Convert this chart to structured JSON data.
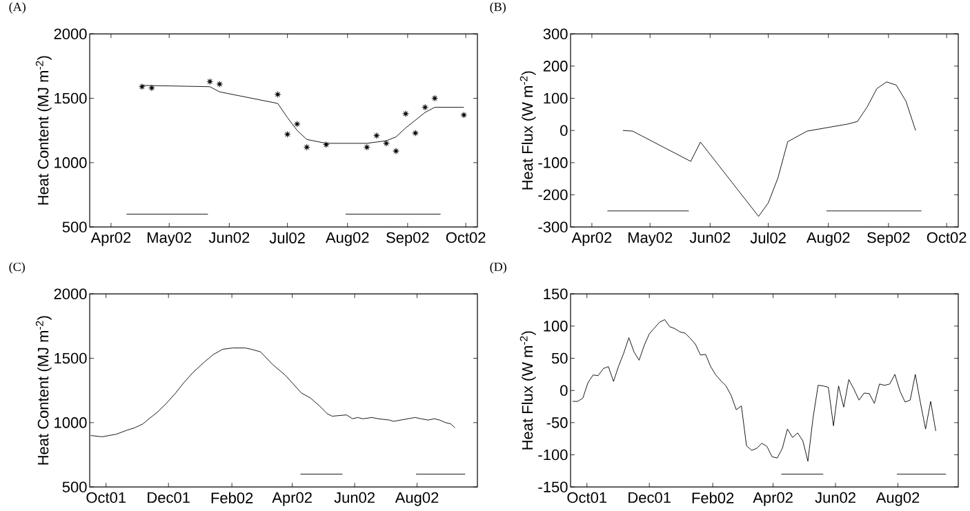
{
  "chart_data": [
    {
      "type": "line",
      "title": "(A)",
      "ylabel": "Heat Content (MJ m$^{-2}$)",
      "xlim": [
        "2002-03-21",
        "2002-10-07"
      ],
      "ylim": [
        500,
        2000
      ],
      "yticks": [
        500,
        1000,
        1500,
        2000
      ],
      "xticks": [
        {
          "value": "2002-04-01",
          "label": "Apr02"
        },
        {
          "value": "2002-05-01",
          "label": "May02"
        },
        {
          "value": "2002-06-01",
          "label": "Jun02"
        },
        {
          "value": "2002-07-01",
          "label": "Jul02"
        },
        {
          "value": "2002-08-01",
          "label": "Aug02"
        },
        {
          "value": "2002-09-01",
          "label": "Sep02"
        },
        {
          "value": "2002-10-01",
          "label": "Oct02"
        }
      ],
      "series": [
        {
          "type": "scatter",
          "marker": "star",
          "color": "#000000",
          "x": [
            "2002-04-17",
            "2002-04-22",
            "2002-05-22",
            "2002-05-27",
            "2002-06-26",
            "2002-07-01",
            "2002-07-06",
            "2002-07-11",
            "2002-07-21",
            "2002-08-11",
            "2002-08-16",
            "2002-08-21",
            "2002-08-26",
            "2002-08-31",
            "2002-09-05",
            "2002-09-10",
            "2002-09-15",
            "2002-09-30"
          ],
          "values": [
            1590,
            1580,
            1630,
            1610,
            1530,
            1220,
            1300,
            1120,
            1140,
            1120,
            1210,
            1150,
            1090,
            1380,
            1230,
            1430,
            1500,
            1370
          ]
        },
        {
          "type": "line",
          "color": "#000000",
          "x": [
            "2002-04-17",
            "2002-05-22",
            "2002-05-27",
            "2002-06-26",
            "2002-07-01",
            "2002-07-06",
            "2002-07-11",
            "2002-07-21",
            "2002-08-11",
            "2002-08-21",
            "2002-08-26",
            "2002-08-31",
            "2002-09-05",
            "2002-09-10",
            "2002-09-15",
            "2002-09-30"
          ],
          "values": [
            1600,
            1590,
            1550,
            1460,
            1350,
            1250,
            1180,
            1150,
            1150,
            1170,
            1200,
            1270,
            1330,
            1390,
            1430,
            1430
          ]
        },
        {
          "type": "line",
          "color": "#000000",
          "x": [
            "2002-04-09",
            "2002-05-21"
          ],
          "values": [
            600,
            600
          ]
        },
        {
          "type": "line",
          "color": "#000000",
          "x": [
            "2002-07-31",
            "2002-09-18"
          ],
          "values": [
            600,
            600
          ]
        }
      ]
    },
    {
      "type": "line",
      "title": "(B)",
      "ylabel": "Heat Flux (W m$^{-2}$)",
      "xlim": [
        "2002-03-21",
        "2002-10-07"
      ],
      "ylim": [
        -300,
        300
      ],
      "yticks": [
        -300,
        -200,
        -100,
        0,
        100,
        200,
        300
      ],
      "xticks": [
        {
          "value": "2002-04-01",
          "label": "Apr02"
        },
        {
          "value": "2002-05-01",
          "label": "May02"
        },
        {
          "value": "2002-06-01",
          "label": "Jun02"
        },
        {
          "value": "2002-07-01",
          "label": "Jul02"
        },
        {
          "value": "2002-08-01",
          "label": "Aug02"
        },
        {
          "value": "2002-09-01",
          "label": "Sep02"
        },
        {
          "value": "2002-10-01",
          "label": "Oct02"
        }
      ],
      "series": [
        {
          "color": "#000000",
          "x": [
            "2002-04-17",
            "2002-04-22",
            "2002-05-22",
            "2002-05-27",
            "2002-06-26",
            "2002-07-01",
            "2002-07-06",
            "2002-07-11",
            "2002-07-21",
            "2002-08-11",
            "2002-08-16",
            "2002-08-21",
            "2002-08-26",
            "2002-08-31",
            "2002-09-05",
            "2002-09-10",
            "2002-09-15"
          ],
          "values": [
            0,
            -2,
            -96,
            -36,
            -267,
            -225,
            -147,
            -35,
            -2,
            20,
            28,
            73,
            130,
            151,
            141,
            91,
            0
          ]
        },
        {
          "color": "#000000",
          "x": [
            "2002-04-09",
            "2002-05-21"
          ],
          "values": [
            -250,
            -250
          ]
        },
        {
          "color": "#000000",
          "x": [
            "2002-07-31",
            "2002-09-18"
          ],
          "values": [
            -250,
            -250
          ]
        }
      ]
    },
    {
      "type": "line",
      "title": "(C)",
      "ylabel": "Heat Content (MJ m$^{-2}$)",
      "xlim": [
        "2001-09-15",
        "2002-09-29"
      ],
      "ylim": [
        500,
        2000
      ],
      "yticks": [
        500,
        1000,
        1500,
        2000
      ],
      "xticks": [
        {
          "value": "2001-10-01",
          "label": "Oct01"
        },
        {
          "value": "2001-12-01",
          "label": "Dec01"
        },
        {
          "value": "2002-02-01",
          "label": "Feb02"
        },
        {
          "value": "2002-04-01",
          "label": "Apr02"
        },
        {
          "value": "2002-06-01",
          "label": "Jun02"
        },
        {
          "value": "2002-08-01",
          "label": "Aug02"
        }
      ],
      "series": [
        {
          "color": "#000000",
          "x": [
            "2001-09-16",
            "2001-09-27",
            "2001-10-11",
            "2001-10-21",
            "2001-10-29",
            "2001-11-06",
            "2001-11-12",
            "2001-11-20",
            "2001-11-29",
            "2001-12-08",
            "2001-12-16",
            "2001-12-25",
            "2002-01-05",
            "2002-01-14",
            "2002-01-23",
            "2002-02-02",
            "2002-02-14",
            "2002-02-20",
            "2002-03-01",
            "2002-03-13",
            "2002-03-25",
            "2002-04-10",
            "2002-04-19",
            "2002-04-29",
            "2002-05-05",
            "2002-05-10",
            "2002-05-24",
            "2002-05-30",
            "2002-06-04",
            "2002-06-09",
            "2002-06-18",
            "2002-06-24",
            "2002-07-05",
            "2002-07-09",
            "2002-07-23",
            "2002-07-30",
            "2002-08-05",
            "2002-08-12",
            "2002-08-18",
            "2002-08-23",
            "2002-08-29",
            "2002-09-03",
            "2002-09-07"
          ],
          "values": [
            900,
            890,
            910,
            940,
            960,
            990,
            1030,
            1080,
            1150,
            1230,
            1310,
            1390,
            1470,
            1530,
            1570,
            1580,
            1580,
            1570,
            1550,
            1450,
            1370,
            1230,
            1190,
            1120,
            1070,
            1050,
            1060,
            1030,
            1040,
            1030,
            1040,
            1030,
            1020,
            1010,
            1030,
            1040,
            1030,
            1020,
            1030,
            1020,
            1000,
            990,
            960
          ]
        },
        {
          "color": "#000000",
          "x": [
            "2002-04-09",
            "2002-05-20"
          ],
          "values": [
            600,
            600
          ]
        },
        {
          "color": "#000000",
          "x": [
            "2002-07-31",
            "2002-09-17"
          ],
          "values": [
            600,
            600
          ]
        }
      ]
    },
    {
      "type": "line",
      "title": "(D)",
      "ylabel": "Heat Flux (W m$^{-2}$)",
      "xlim": [
        "2001-09-15",
        "2002-09-29"
      ],
      "ylim": [
        -150,
        150
      ],
      "yticks": [
        -150,
        -100,
        -50,
        0,
        50,
        100,
        150
      ],
      "xticks": [
        {
          "value": "2001-10-01",
          "label": "Oct01"
        },
        {
          "value": "2001-12-01",
          "label": "Dec01"
        },
        {
          "value": "2002-02-01",
          "label": "Feb02"
        },
        {
          "value": "2002-04-01",
          "label": "Apr02"
        },
        {
          "value": "2002-06-01",
          "label": "Jun02"
        },
        {
          "value": "2002-08-01",
          "label": "Aug02"
        }
      ],
      "series": [
        {
          "color": "#000000",
          "x": [
            "2001-09-17",
            "2001-09-22",
            "2001-09-27",
            "2001-10-02",
            "2001-10-07",
            "2001-10-12",
            "2001-10-17",
            "2001-10-22",
            "2001-10-27",
            "2001-11-01",
            "2001-11-06",
            "2001-11-11",
            "2001-11-16",
            "2001-11-21",
            "2001-11-26",
            "2001-12-01",
            "2001-12-06",
            "2001-12-11",
            "2001-12-16",
            "2001-12-21",
            "2001-12-26",
            "2001-12-31",
            "2002-01-05",
            "2002-01-10",
            "2002-01-15",
            "2002-01-20",
            "2002-01-25",
            "2002-01-30",
            "2002-02-04",
            "2002-02-09",
            "2002-02-14",
            "2002-02-19",
            "2002-02-24",
            "2002-03-01",
            "2002-03-06",
            "2002-03-11",
            "2002-03-16",
            "2002-03-21",
            "2002-03-26",
            "2002-03-31",
            "2002-04-05",
            "2002-04-10",
            "2002-04-15",
            "2002-04-20",
            "2002-04-25",
            "2002-04-30",
            "2002-05-05",
            "2002-05-10",
            "2002-05-15",
            "2002-05-20",
            "2002-05-25",
            "2002-05-30",
            "2002-06-04",
            "2002-06-09",
            "2002-06-14",
            "2002-06-19",
            "2002-06-24",
            "2002-06-29",
            "2002-07-04",
            "2002-07-09",
            "2002-07-14",
            "2002-07-19",
            "2002-07-24",
            "2002-07-29",
            "2002-08-03",
            "2002-08-08",
            "2002-08-13",
            "2002-08-18",
            "2002-08-23",
            "2002-08-28",
            "2002-09-02",
            "2002-09-07"
          ],
          "values": [
            -17,
            -17,
            -12,
            12,
            24,
            23,
            34,
            37,
            14,
            38,
            58,
            82,
            60,
            47,
            70,
            88,
            97,
            106,
            110,
            99,
            96,
            91,
            89,
            81,
            72,
            55,
            56,
            37,
            24,
            15,
            7,
            -8,
            -30,
            -24,
            -86,
            -93,
            -90,
            -82,
            -87,
            -103,
            -105,
            -90,
            -60,
            -73,
            -66,
            -78,
            -110,
            -43,
            8,
            7,
            5,
            -55,
            7,
            -26,
            17,
            2,
            -15,
            -4,
            -5,
            -20,
            10,
            8,
            10,
            25,
            -1,
            -18,
            -15,
            25,
            -19,
            -60,
            -17,
            -63
          ]
        },
        {
          "color": "#000000",
          "x": [
            "2002-04-09",
            "2002-05-20"
          ],
          "values": [
            -130,
            -130
          ]
        },
        {
          "color": "#000000",
          "x": [
            "2002-07-31",
            "2002-09-17"
          ],
          "values": [
            -130,
            -130
          ]
        }
      ]
    }
  ]
}
